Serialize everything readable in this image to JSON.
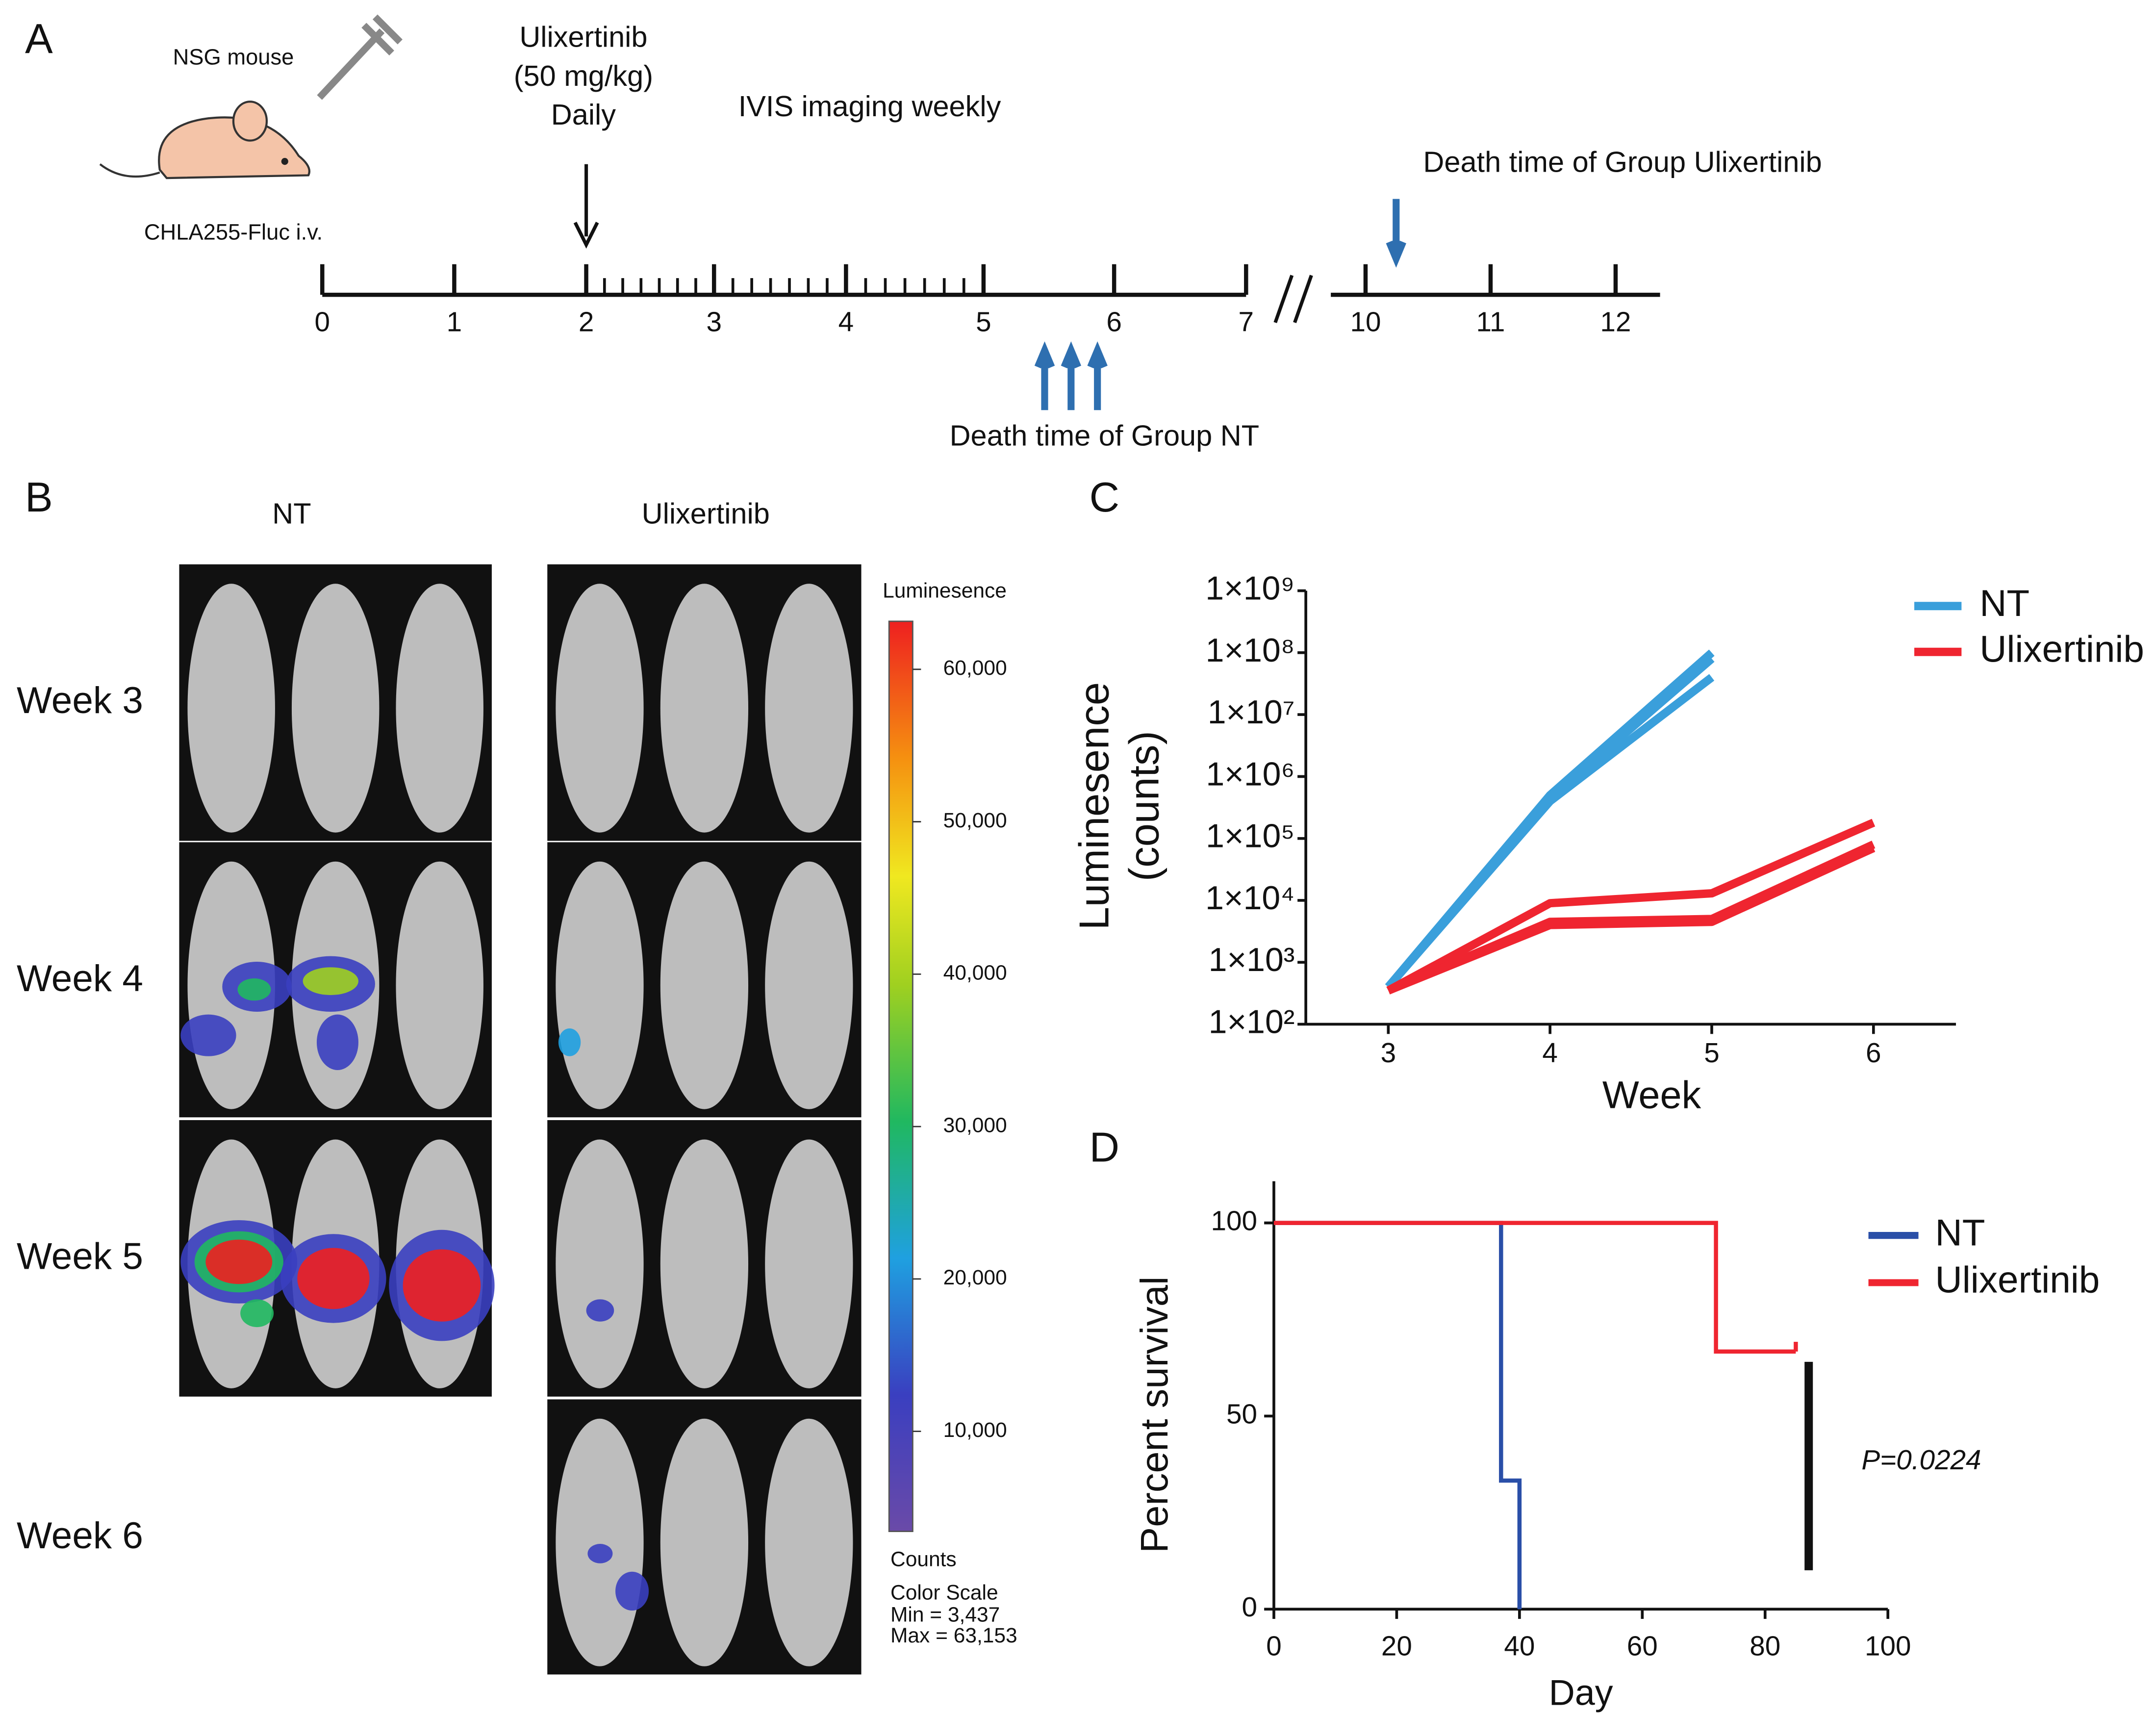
{
  "figure": {
    "panel_labels": [
      "A",
      "B",
      "C",
      "D"
    ],
    "timeline": {
      "mouse": "NSG mouse",
      "injection": "CHLA255-Fluc i.v.",
      "treatment": [
        "Ulixertinib",
        "(50 mg/kg)",
        "Daily"
      ],
      "imaging": "IVIS imaging weekly",
      "death_ulixertinib": "Death time of Group Ulixertinib",
      "death_nt": "Death time of Group NT",
      "ticks": [
        0,
        1,
        2,
        3,
        4,
        5,
        6,
        7,
        10,
        11,
        12
      ]
    },
    "imaging": {
      "groups": [
        "NT",
        "Ulixertinib"
      ],
      "weeks": [
        "Week 3",
        "Week 4",
        "Week 5",
        "Week 6"
      ],
      "colorbar": {
        "title": "Luminesence",
        "clim": [
          3437,
          63153
        ],
        "ticks": [
          {
            "value": 60000,
            "label": "60,000"
          },
          {
            "value": 50000,
            "label": "50,000"
          },
          {
            "value": 40000,
            "label": "40,000"
          },
          {
            "value": 30000,
            "label": "30,000"
          },
          {
            "value": 20000,
            "label": "20,000"
          },
          {
            "value": 10000,
            "label": "10,000"
          }
        ],
        "footer": [
          "Counts",
          "Color Scale",
          "Min = 3,437",
          "Max = 63,153"
        ]
      }
    }
  },
  "chart_data": [
    {
      "type": "line",
      "log_scale": true,
      "ylabel": [
        "Luminesence",
        "(counts)"
      ],
      "xlabel": "Week",
      "x": [
        3,
        4,
        5,
        6
      ],
      "xlim": [
        2.49,
        6.51
      ],
      "xticks": [
        3,
        4,
        5,
        6
      ],
      "ylim": [
        100,
        1000000000
      ],
      "yticks": [
        {
          "value": 100,
          "label": "1×10²"
        },
        {
          "value": 1000,
          "label": "1×10³"
        },
        {
          "value": 10000,
          "label": "1×10⁴"
        },
        {
          "value": 100000,
          "label": "1×10⁵"
        },
        {
          "value": 1000000,
          "label": "1×10⁶"
        },
        {
          "value": 10000000,
          "label": "1×10⁷"
        },
        {
          "value": 100000000,
          "label": "1×10⁸"
        },
        {
          "value": 1000000000,
          "label": "1×10⁹"
        }
      ],
      "legend": "right",
      "series": [
        {
          "name": "NT",
          "color": "#3a9fdb",
          "values": [
            [
              400,
              500000,
              100000000,
              null
            ],
            [
              400,
              450000,
              80000000,
              null
            ],
            [
              400,
              400000,
              40000000,
              null
            ]
          ]
        },
        {
          "name": "Ulixertinib",
          "color": "#ef2530",
          "values": [
            [
              350,
              9000,
              13000,
              180000
            ],
            [
              350,
              4500,
              5000,
              80000
            ],
            [
              350,
              4000,
              4500,
              70000
            ]
          ]
        }
      ]
    },
    {
      "type": "step",
      "ylabel": "Percent survival",
      "xlabel": "Day",
      "xlim": [
        0,
        100
      ],
      "xticks": [
        0,
        20,
        40,
        60,
        80,
        100
      ],
      "ylim": [
        0,
        100
      ],
      "yticks": [
        0,
        50,
        100
      ],
      "legend": "right",
      "annotation": "P=0.0224",
      "series": [
        {
          "name": "NT",
          "color": "#2a4fa8",
          "x": [
            0,
            37,
            40
          ],
          "values": [
            100,
            33.3,
            0
          ]
        },
        {
          "name": "Ulixertinib",
          "color": "#ef2530",
          "x": [
            0,
            72,
            85
          ],
          "values": [
            100,
            66.7,
            66.7
          ]
        }
      ]
    }
  ]
}
